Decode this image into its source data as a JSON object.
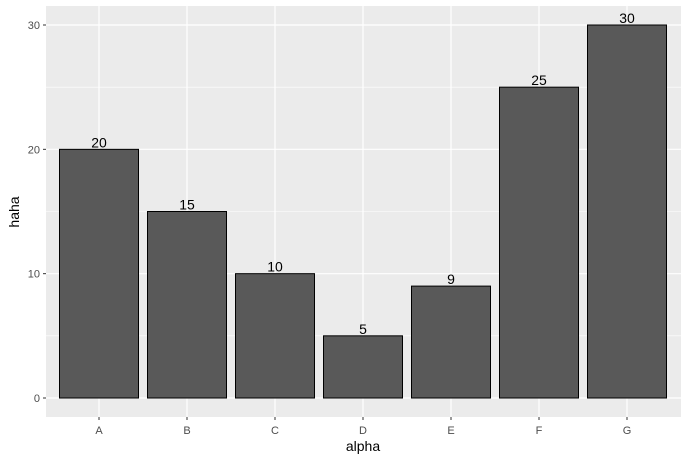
{
  "chart_data": {
    "type": "bar",
    "title": "",
    "xlabel": "alpha",
    "ylabel": "haha",
    "categories": [
      "A",
      "B",
      "C",
      "D",
      "E",
      "F",
      "G"
    ],
    "values": [
      20,
      15,
      10,
      5,
      9,
      25,
      30
    ],
    "data_labels": [
      "20",
      "15",
      "10",
      "5",
      "9",
      "25",
      "30"
    ],
    "ylim": [
      0,
      31.5
    ],
    "yticks": [
      0,
      10,
      20,
      30
    ],
    "ytick_labels": [
      "0",
      "10",
      "20",
      "30"
    ],
    "grid": true,
    "legend": "none"
  },
  "colors": {
    "panel_background": "#ebebeb",
    "grid_major": "#ffffff",
    "bar_fill": "#595959",
    "bar_outline": "#000000",
    "text": "#000000",
    "tick_text": "#4d4d4d"
  }
}
